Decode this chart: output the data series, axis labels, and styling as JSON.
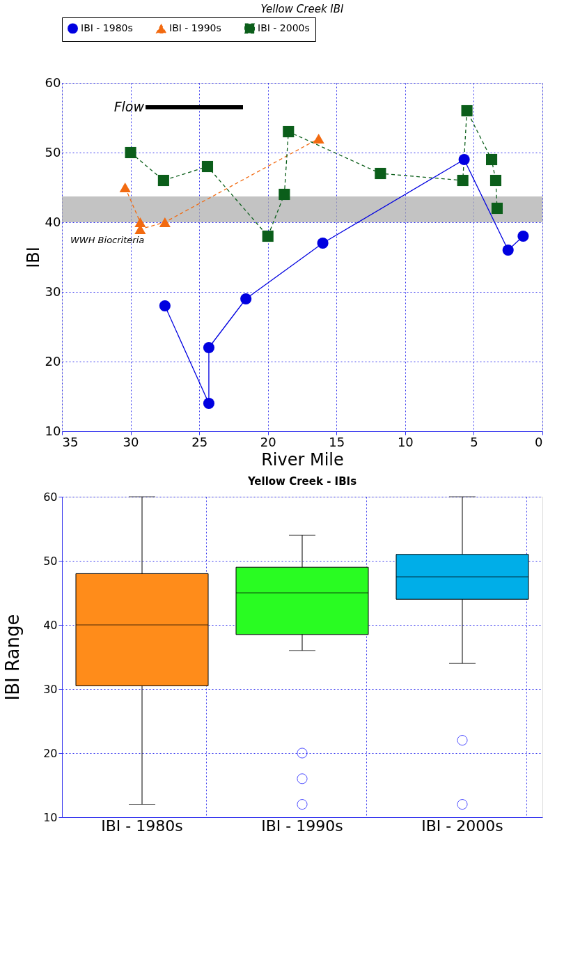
{
  "chart_data": [
    {
      "type": "line",
      "title": "Yellow Creek IBI",
      "xlabel": "River Mile",
      "ylabel": "IBI",
      "xlim": [
        35,
        0
      ],
      "xticks": [
        35,
        30,
        25,
        20,
        15,
        10,
        5,
        0
      ],
      "ylim": [
        10,
        60
      ],
      "yticks": [
        10,
        20,
        30,
        40,
        50,
        60
      ],
      "grid": true,
      "legend": "top",
      "bands": [
        {
          "axis": "y",
          "from": 40,
          "to": 43.7,
          "label": "WWH Biocriteria",
          "color": "#aaaaaa"
        }
      ],
      "annotations": [
        "Flow"
      ],
      "series": [
        {
          "name": "IBI - 1980s",
          "color": "#0000e0",
          "marker": "circle",
          "line_style": "solid",
          "x": [
            27.5,
            24.3,
            24.3,
            21.6,
            16.0,
            5.7,
            2.5,
            1.4
          ],
          "values": [
            28,
            14,
            22,
            29,
            37,
            49,
            36,
            38
          ]
        },
        {
          "name": "IBI - 1990s",
          "color": "#f26a10",
          "marker": "triangle",
          "line_style": "dashed",
          "x": [
            30.4,
            29.3,
            29.3,
            27.5,
            16.3
          ],
          "values": [
            45,
            40,
            39,
            40,
            52
          ]
        },
        {
          "name": "IBI - 2000s",
          "color": "#0b5e1a",
          "marker": "square",
          "line_style": "dashed",
          "x": [
            30.0,
            27.6,
            24.4,
            20.0,
            18.8,
            18.5,
            11.8,
            5.8,
            5.5,
            3.7,
            3.4,
            3.3
          ],
          "values": [
            50,
            46,
            48,
            38,
            44,
            53,
            47,
            46,
            56,
            49,
            46,
            42
          ]
        }
      ]
    },
    {
      "type": "box",
      "title": "Yellow Creek - IBIs",
      "ylabel": "IBI Range",
      "categories": [
        "IBI - 1980s",
        "IBI - 1990s",
        "IBI - 2000s"
      ],
      "colors": [
        "#ff8c1a",
        "#29fc22",
        "#00aee8"
      ],
      "boxes": [
        {
          "low": 12,
          "q1": 30.5,
          "median": 40,
          "q3": 48,
          "high": 60
        },
        {
          "low": 36,
          "q1": 38.5,
          "median": 45,
          "q3": 49,
          "high": 54,
          "outliers": [
            20,
            16,
            12
          ]
        },
        {
          "low": 34,
          "q1": 44,
          "median": 47.5,
          "q3": 51,
          "high": 60,
          "outliers": [
            22,
            12
          ]
        }
      ],
      "ylim": [
        10,
        60
      ],
      "yticks": [
        10,
        20,
        30,
        40,
        50,
        60
      ],
      "grid": true
    }
  ]
}
